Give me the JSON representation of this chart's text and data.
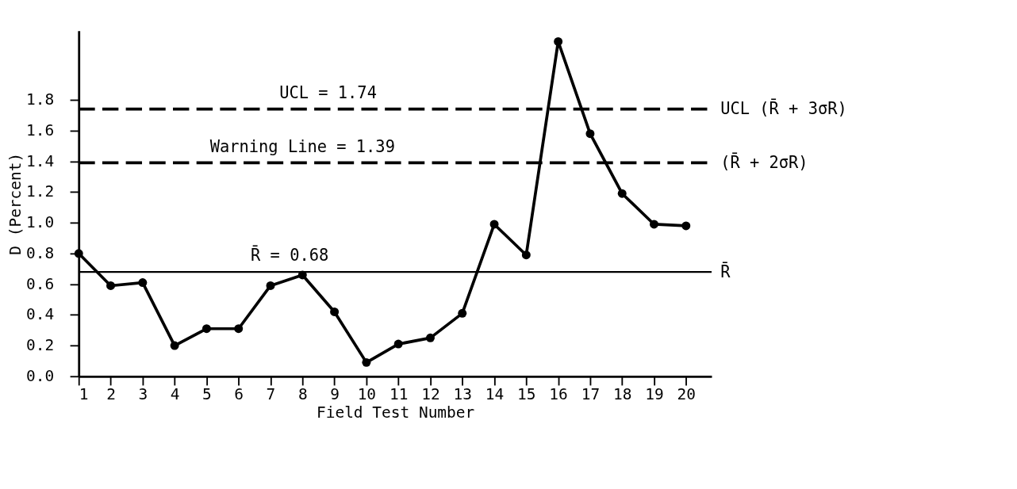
{
  "chart_data": {
    "type": "line",
    "xlabel": "Field Test Number",
    "ylabel": "D (Percent)",
    "x": [
      1,
      2,
      3,
      4,
      5,
      6,
      7,
      8,
      9,
      10,
      11,
      12,
      13,
      14,
      15,
      16,
      17,
      18,
      19,
      20
    ],
    "series": [
      {
        "color": "#000000",
        "values": [
          0.8,
          0.59,
          0.61,
          0.2,
          0.31,
          0.31,
          0.59,
          0.66,
          0.42,
          0.09,
          0.21,
          0.25,
          0.41,
          0.99,
          0.79,
          2.18,
          1.58,
          1.19,
          0.99,
          0.98
        ]
      }
    ],
    "xlim": [
      1,
      20.8
    ],
    "xticks": [
      1,
      2,
      3,
      4,
      5,
      6,
      7,
      8,
      9,
      10,
      11,
      12,
      13,
      14,
      15,
      16,
      17,
      18,
      19,
      20
    ],
    "ylim": [
      0,
      2.25
    ],
    "yticks": [
      {
        "value": 0,
        "label": "0.0"
      },
      0.2,
      0.4,
      0.6,
      0.8,
      {
        "value": 1,
        "label": "1.0"
      },
      1.2,
      1.4,
      1.6,
      1.8
    ],
    "ref_lines": [
      {
        "axis": "y",
        "value": 1.74,
        "label": "UCL (R̄ + 3σR)",
        "line_style": "dashed"
      },
      {
        "axis": "y",
        "value": 1.39,
        "label": "(R̄ + 2σR)",
        "line_style": "dashed"
      },
      {
        "axis": "y",
        "value": 0.68,
        "label": "R̄",
        "line_style": "solid"
      }
    ],
    "annotations": [
      {
        "text": "UCL = 1.74",
        "x": 8.8,
        "y": 1.74
      },
      {
        "text": "Warning Line = 1.39",
        "x": 8,
        "y": 1.39
      },
      {
        "text": "R̄ = 0.68",
        "x": 7.6,
        "y": 0.68
      }
    ],
    "marker": "circle",
    "line_style": "solid",
    "grid": false
  }
}
